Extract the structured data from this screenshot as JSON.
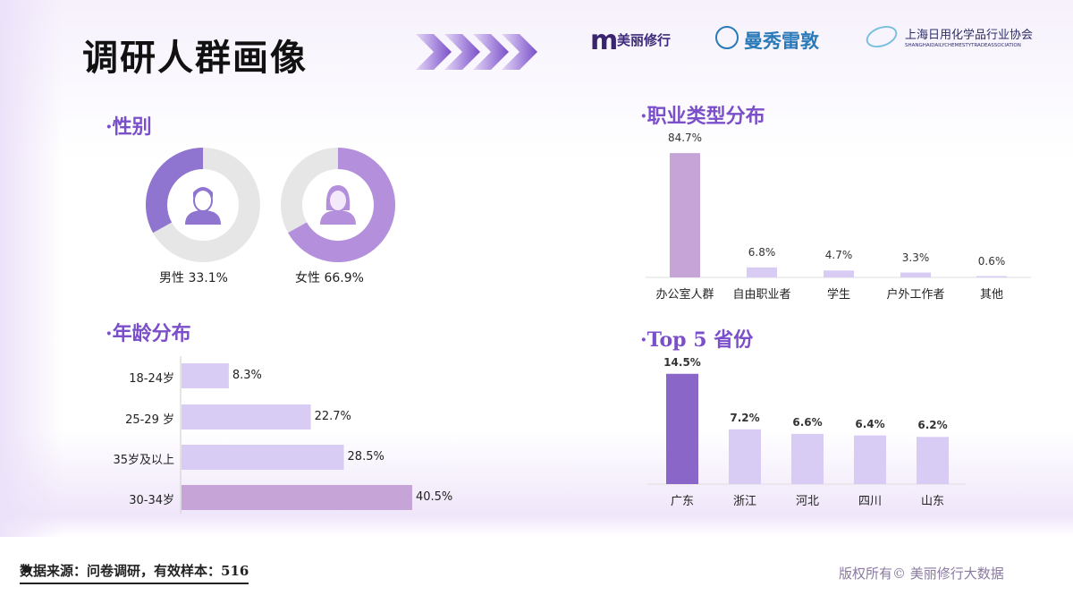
{
  "header": {
    "title": "调研人群画像",
    "logos": [
      "美丽修行",
      "曼秀雷敦",
      "上海日用化学品行业协会",
      "SHANGHAIDAILYCHEMESTYTRADEASSOCIATION"
    ]
  },
  "colors": {
    "accent": "#7a4fc9",
    "dark_bar": "#8a66c8",
    "light_bar": "#d8ccf5",
    "pink_bar": "#c7a4d8",
    "donut_bg": "#e6e6e6"
  },
  "chart_data": [
    {
      "type": "pie",
      "title": "·性别",
      "categories": [
        "男性",
        "女性"
      ],
      "values": [
        33.1,
        66.9
      ],
      "labels": [
        "男性  33.1%",
        "女性  66.9%"
      ]
    },
    {
      "type": "bar",
      "orientation": "horizontal",
      "title": "·年龄分布",
      "categories": [
        "18-24岁",
        "25-29 岁",
        "35岁及以上",
        "30-34岁"
      ],
      "values": [
        8.3,
        22.7,
        28.5,
        40.5
      ],
      "labels": [
        "8.3%",
        "22.7%",
        "28.5%",
        "40.5%"
      ]
    },
    {
      "type": "bar",
      "title": "·职业类型分布",
      "categories": [
        "办公室人群",
        "自由职业者",
        "学生",
        "户外工作者",
        "其他"
      ],
      "values": [
        84.7,
        6.8,
        4.7,
        3.3,
        0.6
      ],
      "labels": [
        "84.7%",
        "6.8%",
        "4.7%",
        "3.3%",
        "0.6%"
      ]
    },
    {
      "type": "bar",
      "title": "·Top 5 省份",
      "categories": [
        "广东",
        "浙江",
        "河北",
        "四川",
        "山东"
      ],
      "values": [
        14.5,
        7.2,
        6.6,
        6.4,
        6.2
      ],
      "labels": [
        "14.5%",
        "7.2%",
        "6.6%",
        "6.4%",
        "6.2%"
      ]
    }
  ],
  "footer": {
    "source": "数据来源：问卷调研，有效样本：516",
    "copyright": "版权所有© 美丽修行大数据"
  }
}
